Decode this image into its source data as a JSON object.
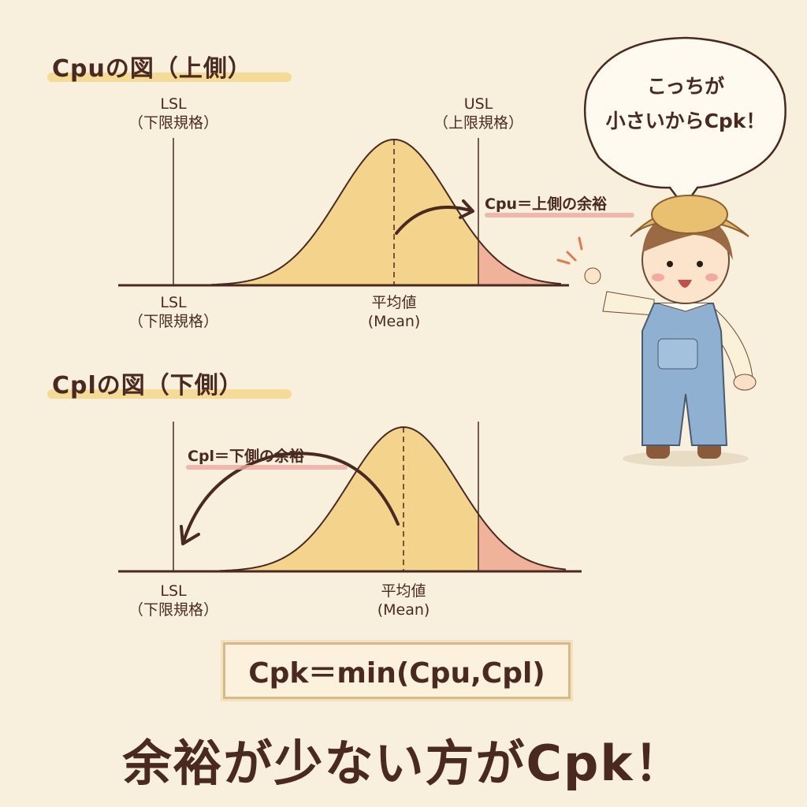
{
  "top_diagram": {
    "title": "Cpuの図（上側）",
    "lsl_top": "LSL",
    "lsl_top_sub": "（下限規格）",
    "usl_top": "USL",
    "usl_top_sub": "（上限規格）",
    "lsl_bottom": "LSL",
    "lsl_bottom_sub": "（下限規格）",
    "mean": "平均値",
    "mean_sub": "(Mean)",
    "note": "Cpu＝上側の余裕"
  },
  "bottom_diagram": {
    "title": "Cplの図（下側）",
    "note": "Cpl＝下側の余裕",
    "lsl": "LSL",
    "lsl_sub": "（下限規格）",
    "mean": "平均値",
    "mean_sub": "(Mean)"
  },
  "speech_bubble": {
    "line1": "こっちが",
    "line2": "小さいからCpk！"
  },
  "formula": "Cpk＝min(Cpu,Cpl)",
  "conclusion": "余裕が少ない方がCpk！",
  "colors": {
    "background": "#f8f0dc",
    "curve_fill": "#f3cf7e",
    "tail_fill": "#f0a9a0",
    "ink": "#4a2a20"
  }
}
